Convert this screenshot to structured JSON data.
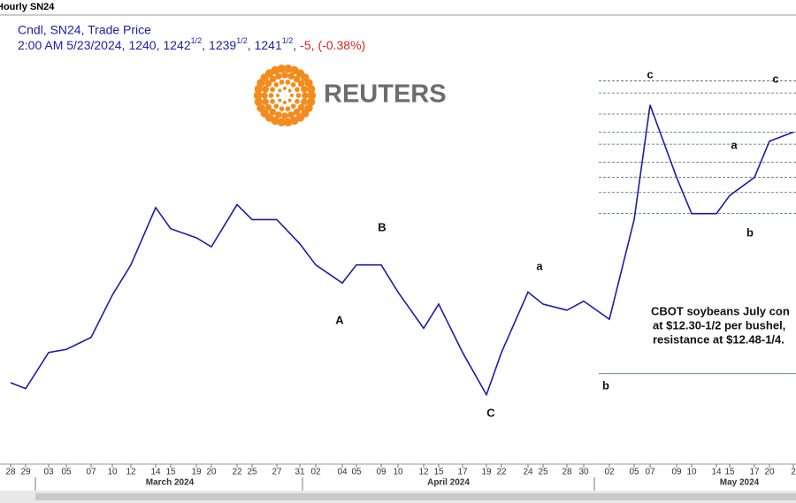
{
  "header": {
    "title": "Hourly SN24",
    "subtitle": "Cndl, SN24, Trade Price",
    "separator": ",",
    "quote": [
      {
        "whole": "2:00 AM 5/23/2024"
      },
      {
        "whole": "1240"
      },
      {
        "whole": "1242",
        "frac": "1/2"
      },
      {
        "whole": "1239",
        "frac": "1/2"
      },
      {
        "whole": "1241",
        "frac": "1/2"
      }
    ],
    "change": [
      "-5",
      "(-0.38%)"
    ]
  },
  "logo": "REUTERS",
  "chart_data": {
    "type": "line",
    "color": "#1c1ca8",
    "categories": [
      "28",
      "29",
      "03",
      "05",
      "07",
      "10",
      "12",
      "14",
      "15",
      "19",
      "20",
      "22",
      "25",
      "27",
      "31",
      "02",
      "04",
      "05",
      "09",
      "10",
      "12",
      "15",
      "17",
      "19",
      "22",
      "24",
      "25",
      "28",
      "30",
      "02",
      "05",
      "07",
      "09",
      "10",
      "14",
      "15",
      "17",
      "20",
      "2"
    ],
    "values": [
      1152,
      1150,
      1162,
      1163,
      1167,
      1181,
      1191,
      1210,
      1203,
      1200,
      1197,
      1211,
      1206,
      1206,
      1198,
      1191,
      1185,
      1191,
      1191,
      1182,
      1170,
      1178,
      1162,
      1148,
      1162,
      1182,
      1178,
      1176,
      1179,
      1173,
      1206,
      1244,
      1220,
      1208,
      1208,
      1214,
      1220,
      1232,
      1235
    ],
    "ylim": [
      1125,
      1270
    ],
    "months": [
      "March 2024",
      "April 2024",
      "May 2024"
    ],
    "levels": [
      1252,
      1248,
      1241,
      1235,
      1231,
      1225,
      1220,
      1215,
      1208
    ],
    "support": 1155,
    "annotations": [
      "c",
      "c",
      "a",
      "b",
      "B",
      "A",
      "a",
      "b",
      "C"
    ],
    "note": [
      "CBOT soybeans July con",
      "at $12.30-1/2 per bushel,",
      "resistance at $12.48-1/4."
    ]
  }
}
